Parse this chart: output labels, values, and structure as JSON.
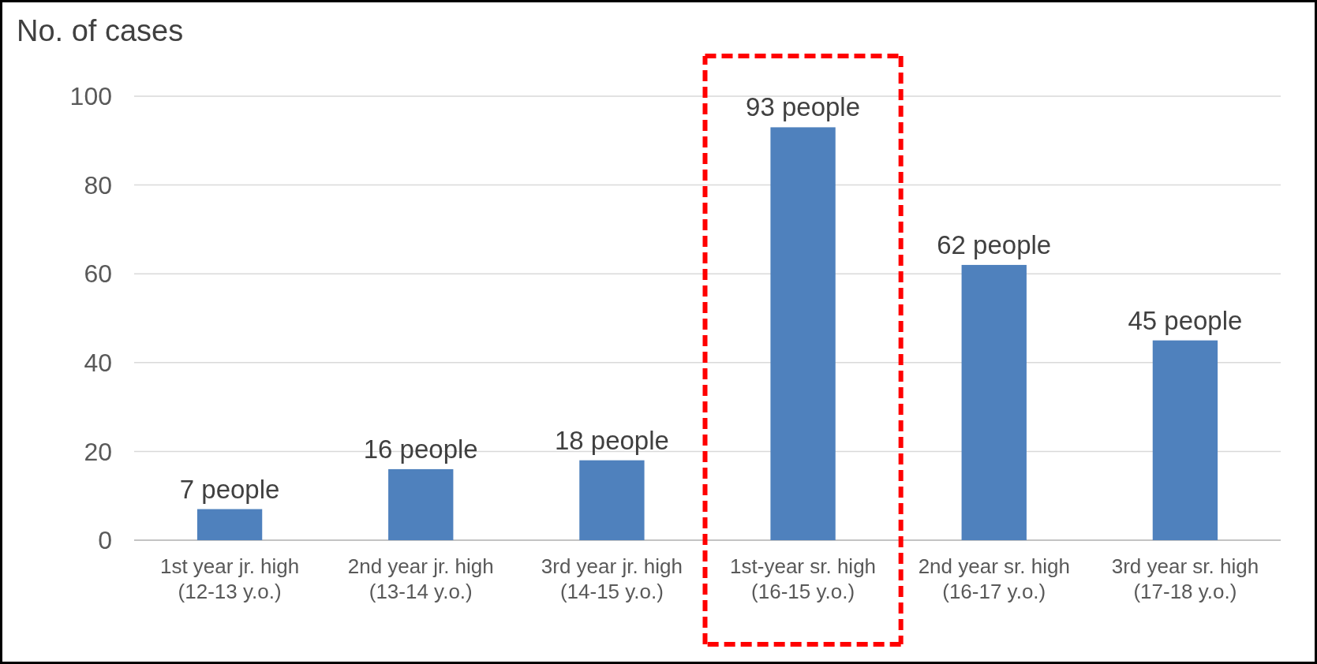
{
  "chart_data": {
    "type": "bar",
    "ylabel": "No. of cases",
    "categories": [
      "1st year jr. high\n(12-13 y.o.)",
      "2nd year jr. high\n(13-14 y.o.)",
      "3rd year jr. high\n(14-15 y.o.)",
      "1st-year sr. high\n(16-15 y.o.)",
      "2nd year sr. high\n(16-17 y.o.)",
      "3rd year sr. high\n(17-18 y.o.)"
    ],
    "values": [
      7,
      16,
      18,
      93,
      62,
      45
    ],
    "color": "#4f81bd",
    "value_labels": [
      "7 people",
      "16 people",
      "18 people",
      "93 people",
      "62 people",
      "45 people"
    ],
    "ylim": [
      0,
      100
    ],
    "yticks": [
      0,
      20,
      40,
      60,
      80,
      100
    ],
    "grid": "y"
  }
}
